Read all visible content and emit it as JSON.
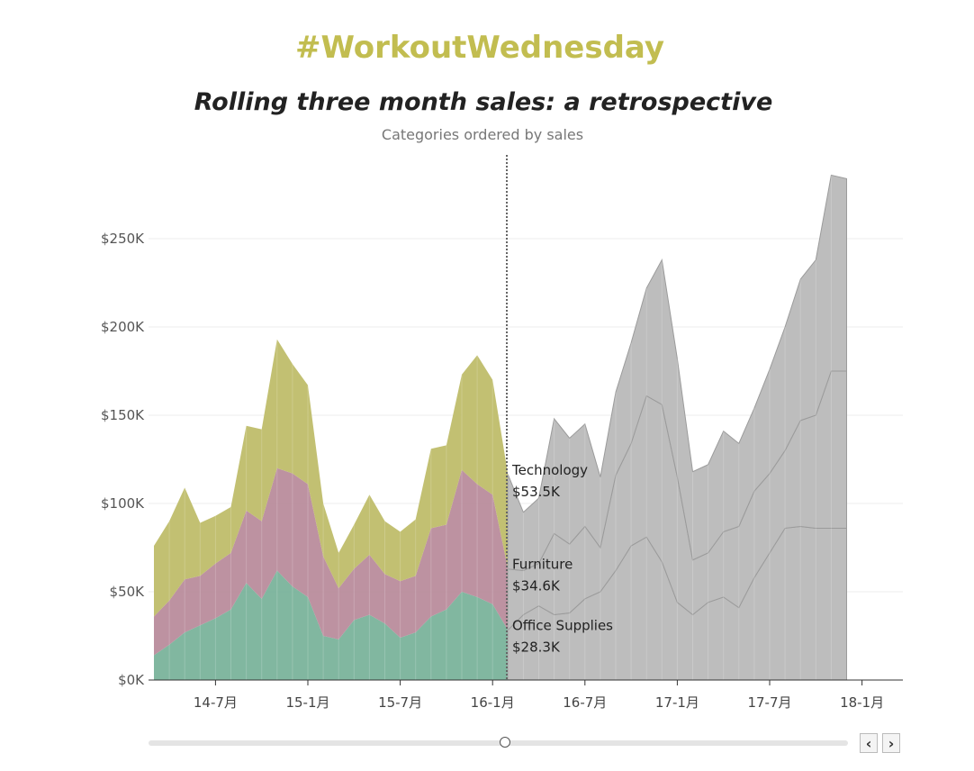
{
  "header": {
    "hashtag": "#WorkoutWednesday",
    "title": "Rolling three month sales: a retrospective",
    "subtitle": "Categories ordered by sales"
  },
  "colors": {
    "office_supplies": "#7ab39b",
    "furniture": "#b98c9c",
    "technology": "#bfbd6a",
    "future": "#bdbdbd",
    "accent": "#c2bd50"
  },
  "annotations": [
    {
      "name": "Technology",
      "value": "$53.5K"
    },
    {
      "name": "Furniture",
      "value": "$34.6K"
    },
    {
      "name": "Office Supplies",
      "value": "$28.3K"
    }
  ],
  "controls": {
    "prev_label": "‹",
    "next_label": "›",
    "slider_position": 0.51
  },
  "chart_data": {
    "type": "area",
    "stacked": true,
    "current_month": "2016-02",
    "x": [
      "2014-03",
      "2014-04",
      "2014-05",
      "2014-06",
      "2014-07",
      "2014-08",
      "2014-09",
      "2014-10",
      "2014-11",
      "2014-12",
      "2015-01",
      "2015-02",
      "2015-03",
      "2015-04",
      "2015-05",
      "2015-06",
      "2015-07",
      "2015-08",
      "2015-09",
      "2015-10",
      "2015-11",
      "2015-12",
      "2016-01",
      "2016-02",
      "2016-03",
      "2016-04",
      "2016-05",
      "2016-06",
      "2016-07",
      "2016-08",
      "2016-09",
      "2016-10",
      "2016-11",
      "2016-12",
      "2017-01",
      "2017-02",
      "2017-03",
      "2017-04",
      "2017-05",
      "2017-06",
      "2017-07",
      "2017-08",
      "2017-09",
      "2017-10",
      "2017-11",
      "2017-12"
    ],
    "series": [
      {
        "name": "Office Supplies",
        "values": [
          14,
          20,
          27,
          31,
          35,
          40,
          55,
          46,
          62,
          53,
          47,
          25,
          23,
          34,
          37,
          32,
          24,
          27,
          36,
          40,
          50,
          47,
          43,
          28.3,
          37,
          42,
          37,
          38,
          46,
          50,
          62,
          76,
          81,
          67,
          44,
          37,
          44,
          47,
          41,
          58,
          72,
          86,
          87,
          86,
          86,
          86
        ]
      },
      {
        "name": "Furniture",
        "values": [
          22,
          25,
          30,
          28,
          31,
          32,
          41,
          44,
          58,
          64,
          64,
          45,
          29,
          29,
          34,
          28,
          32,
          32,
          50,
          48,
          69,
          64,
          62,
          34.6,
          25,
          24,
          46,
          39,
          41,
          25,
          54,
          58,
          80,
          89,
          71,
          31,
          28,
          37,
          46,
          49,
          45,
          44,
          60,
          64,
          89,
          89
        ]
      },
      {
        "name": "Technology",
        "values": [
          40,
          45,
          52,
          30,
          27,
          26,
          48,
          52,
          73,
          62,
          56,
          30,
          20,
          25,
          34,
          30,
          28,
          32,
          45,
          45,
          54,
          73,
          65,
          53.5,
          33,
          37,
          65,
          60,
          58,
          40,
          47,
          57,
          61,
          82,
          67,
          50,
          50,
          57,
          47,
          47,
          59,
          70,
          80,
          88,
          111,
          109
        ]
      }
    ],
    "xticks": [
      "14-7月",
      "15-1月",
      "15-7月",
      "16-1月",
      "16-7月",
      "17-1月",
      "17-7月",
      "18-1月"
    ],
    "yticks": [
      "$0K",
      "$50K",
      "$100K",
      "$150K",
      "$200K",
      "$250K"
    ],
    "ylim": [
      0,
      300000
    ],
    "grid": true
  }
}
